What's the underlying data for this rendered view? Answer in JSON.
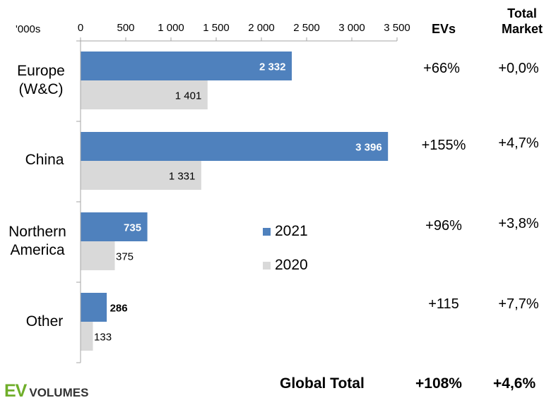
{
  "unit_label": "'000s",
  "columns": {
    "evs_header": "EVs",
    "total_header_line1": "Total",
    "total_header_line2": "Market"
  },
  "colors": {
    "y2021": "#4f81bd",
    "y2020": "#d9d9d9",
    "axis": "#a6a6a6",
    "logo_green": "#6fae2a"
  },
  "chart_data": {
    "type": "bar",
    "orientation": "horizontal",
    "categories": [
      "Europe (W&C)",
      "China",
      "Northern America",
      "Other"
    ],
    "series": [
      {
        "name": "2021",
        "values": [
          2332,
          3396,
          735,
          286
        ],
        "labels": [
          "2 332",
          "3 396",
          "735",
          "286"
        ]
      },
      {
        "name": "2020",
        "values": [
          1401,
          1331,
          375,
          133
        ],
        "labels": [
          "1 401",
          "1 331",
          "375",
          "133"
        ]
      }
    ],
    "xlim": [
      0,
      3500
    ],
    "xticks": [
      0,
      500,
      1000,
      1500,
      2000,
      2500,
      3000,
      3500
    ],
    "xtick_labels": [
      "0",
      "500",
      "1 000",
      "1 500",
      "2 000",
      "2 500",
      "3 000",
      "3 500"
    ],
    "axis_position": "top",
    "grid": false,
    "legend_placement": "inside-right"
  },
  "rows": [
    {
      "label_line1": "Europe",
      "label_line2": "(W&C)",
      "evs": "+66%",
      "total": "+0,0%"
    },
    {
      "label_line1": "China",
      "label_line2": "",
      "evs": "+155%",
      "total": "+4,7%"
    },
    {
      "label_line1": "Northern",
      "label_line2": "America",
      "evs": "+96%",
      "total": "+3,8%"
    },
    {
      "label_line1": "Other",
      "label_line2": "",
      "evs": "+115",
      "total": "+7,7%"
    }
  ],
  "legend": {
    "y2021": "2021",
    "y2020": "2020"
  },
  "footer": {
    "label": "Global Total",
    "evs": "+108%",
    "total": "+4,6%"
  },
  "logo": {
    "ev": "EV",
    "volumes": "VOLUMES"
  }
}
